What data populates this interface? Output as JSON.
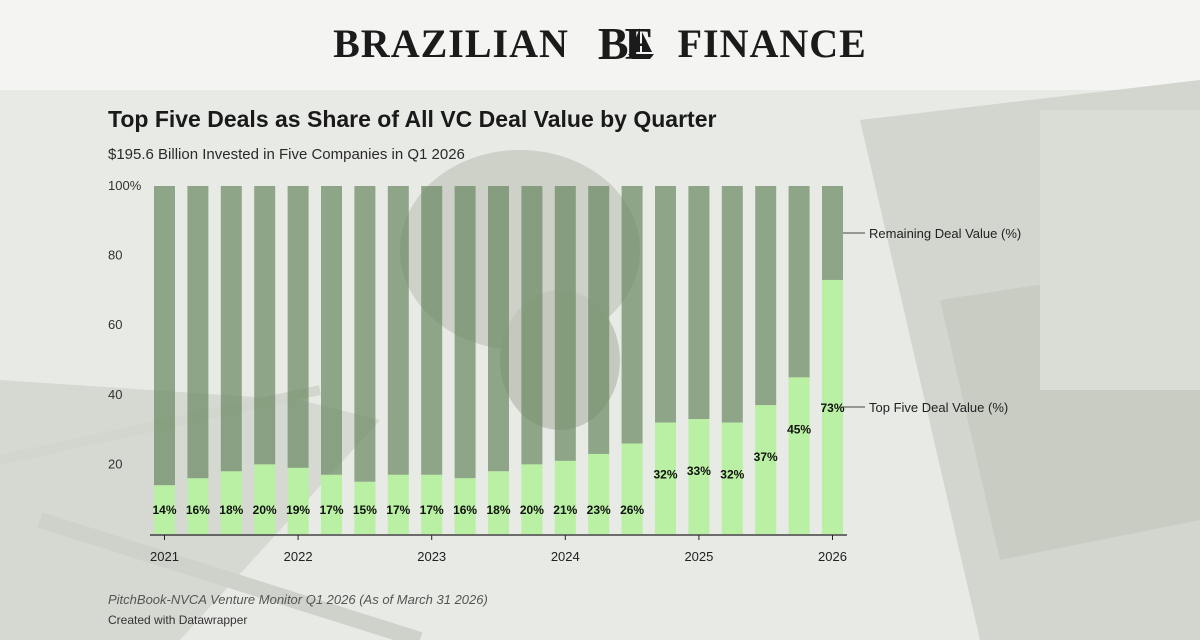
{
  "brand": {
    "name_left": "BRAZILIAN",
    "name_mark": "BF",
    "name_right": "FINANCE"
  },
  "chart_data": {
    "type": "bar",
    "stacked": true,
    "title": "Top Five Deals as Share of All VC Deal Value by Quarter",
    "subtitle": "$195.6 Billion Invested in Five Companies in Q1 2026",
    "ylim": [
      0,
      100
    ],
    "y_ticks": [
      "100%",
      "80",
      "60",
      "40",
      "20"
    ],
    "y_tick_values": [
      100,
      80,
      60,
      40,
      20
    ],
    "x_ticks": [
      "2021",
      "2022",
      "2023",
      "2024",
      "2025",
      "2026"
    ],
    "x_tick_index": [
      0,
      4,
      8,
      12,
      16,
      20
    ],
    "categories": [
      "2021 Q1",
      "2021 Q2",
      "2021 Q3",
      "2021 Q4",
      "2022 Q1",
      "2022 Q2",
      "2022 Q3",
      "2022 Q4",
      "2023 Q1",
      "2023 Q2",
      "2023 Q3",
      "2023 Q4",
      "2024 Q1",
      "2024 Q2",
      "2024 Q3",
      "2024 Q4",
      "2025 Q1",
      "2025 Q2",
      "2025 Q3",
      "2025 Q4",
      "2026 Q1"
    ],
    "series": [
      {
        "name": "Top Five Deal Value (%)",
        "color": "#b9f0a3",
        "values": [
          14,
          16,
          18,
          20,
          19,
          17,
          15,
          17,
          17,
          16,
          18,
          20,
          21,
          23,
          26,
          32,
          33,
          32,
          37,
          45,
          73
        ]
      },
      {
        "name": "Remaining Deal Value (%)",
        "color": "#6b8a62",
        "values": [
          86,
          84,
          82,
          80,
          81,
          83,
          85,
          83,
          83,
          84,
          82,
          80,
          79,
          77,
          74,
          68,
          67,
          68,
          63,
          55,
          27
        ]
      }
    ],
    "data_labels": [
      "14%",
      "16%",
      "18%",
      "20%",
      "19%",
      "17%",
      "15%",
      "17%",
      "17%",
      "16%",
      "18%",
      "20%",
      "21%",
      "23%",
      "26%",
      "32%",
      "33%",
      "32%",
      "37%",
      "45%",
      "73%"
    ],
    "legend_placement": "right, inline"
  },
  "footer": {
    "source": "PitchBook-NVCA Venture Monitor Q1 2026 (As of March 31 2026)",
    "credit": "Created with Datawrapper"
  }
}
